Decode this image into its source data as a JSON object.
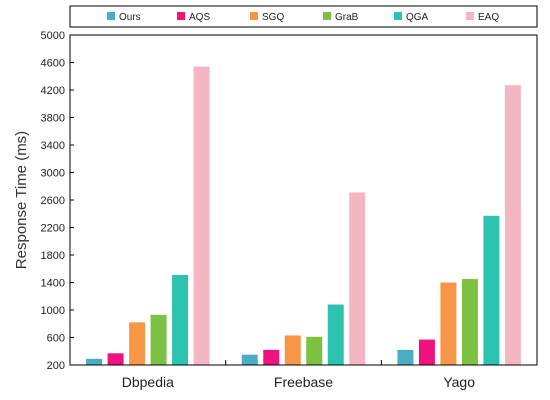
{
  "chart_data": {
    "type": "bar",
    "ylabel": "Response  Time (ms)",
    "xlabel": "",
    "ylim": [
      200,
      5000
    ],
    "yticks": [
      200,
      600,
      1000,
      1400,
      1800,
      2200,
      2600,
      3000,
      3400,
      3800,
      4200,
      4600,
      5000
    ],
    "categories": [
      "Dbpedia",
      "Freebase",
      "Yago"
    ],
    "legend_position": "top",
    "grid": false,
    "series": [
      {
        "name": "Ours",
        "color": "#4bacc6",
        "values": [
          290,
          350,
          420
        ]
      },
      {
        "name": "AQS",
        "color": "#f0137f",
        "values": [
          370,
          420,
          570
        ]
      },
      {
        "name": "SGQ",
        "color": "#f79646",
        "values": [
          820,
          630,
          1400
        ]
      },
      {
        "name": "GraB",
        "color": "#7cc142",
        "values": [
          930,
          610,
          1450
        ]
      },
      {
        "name": "QGA",
        "color": "#2cc4b0",
        "values": [
          1510,
          1080,
          2370
        ]
      },
      {
        "name": "EAQ",
        "color": "#f4b7c2",
        "values": [
          4540,
          2710,
          4270
        ]
      }
    ]
  }
}
